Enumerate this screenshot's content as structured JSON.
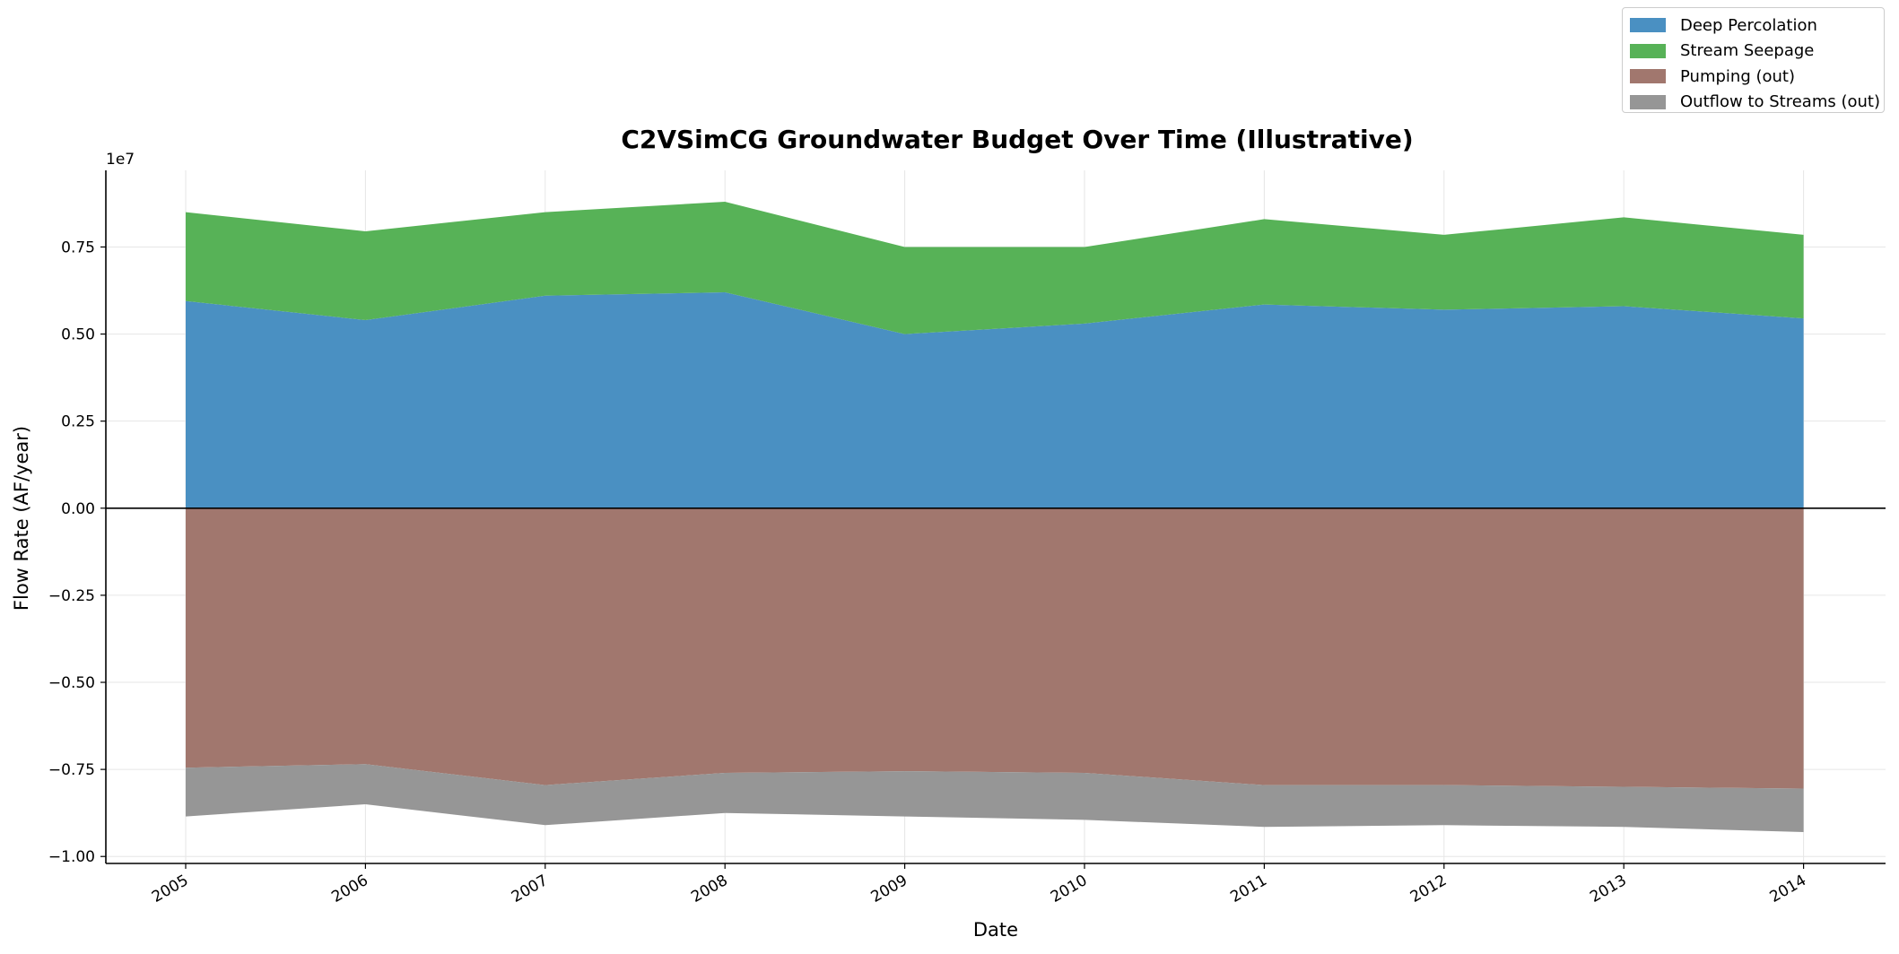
{
  "chart_data": {
    "type": "area",
    "title": "C2VSimCG Groundwater Budget Over Time (Illustrative)",
    "xlabel": "Date",
    "ylabel": "Flow Rate (AF/year)",
    "y_offset_label": "1e7",
    "y_scale": 10000000,
    "ylim": [
      -10200000,
      9700000
    ],
    "y_ticks": [
      -10000000,
      -7500000,
      -5000000,
      -2500000,
      0,
      2500000,
      5000000,
      7500000
    ],
    "y_tick_labels": [
      "−1.00",
      "−0.75",
      "−0.50",
      "−0.25",
      "0.00",
      "0.25",
      "0.50",
      "0.75"
    ],
    "x": [
      "2005",
      "2006",
      "2007",
      "2008",
      "2009",
      "2010",
      "2011",
      "2012",
      "2013",
      "2014"
    ],
    "x_tick_labels": [
      "2005",
      "2006",
      "2007",
      "2008",
      "2009",
      "2010",
      "2011",
      "2012",
      "2013",
      "2014"
    ],
    "xlim": [
      "2004-07",
      "2014-10"
    ],
    "grid": true,
    "zero_line": true,
    "legend_position": "top-right",
    "stacking": "positive series stacked upward from zero; negative series stacked downward from zero",
    "series": [
      {
        "name": "Deep Percolation",
        "color": "#4a90c2",
        "values": [
          5950000,
          5400000,
          6100000,
          6200000,
          5000000,
          5300000,
          5850000,
          5700000,
          5800000,
          5450000
        ]
      },
      {
        "name": "Stream Seepage",
        "color": "#57b257",
        "values": [
          2550000,
          2550000,
          2400000,
          2600000,
          2500000,
          2200000,
          2450000,
          2150000,
          2550000,
          2400000
        ]
      },
      {
        "name": "Pumping (out)",
        "color": "#a1776e",
        "values": [
          -7450000,
          -7350000,
          -7950000,
          -7600000,
          -7550000,
          -7600000,
          -7950000,
          -7950000,
          -8000000,
          -8050000
        ]
      },
      {
        "name": "Outflow to Streams (out)",
        "color": "#969696",
        "values": [
          -1400000,
          -1150000,
          -1150000,
          -1150000,
          -1300000,
          -1350000,
          -1200000,
          -1150000,
          -1150000,
          -1250000
        ]
      }
    ]
  }
}
